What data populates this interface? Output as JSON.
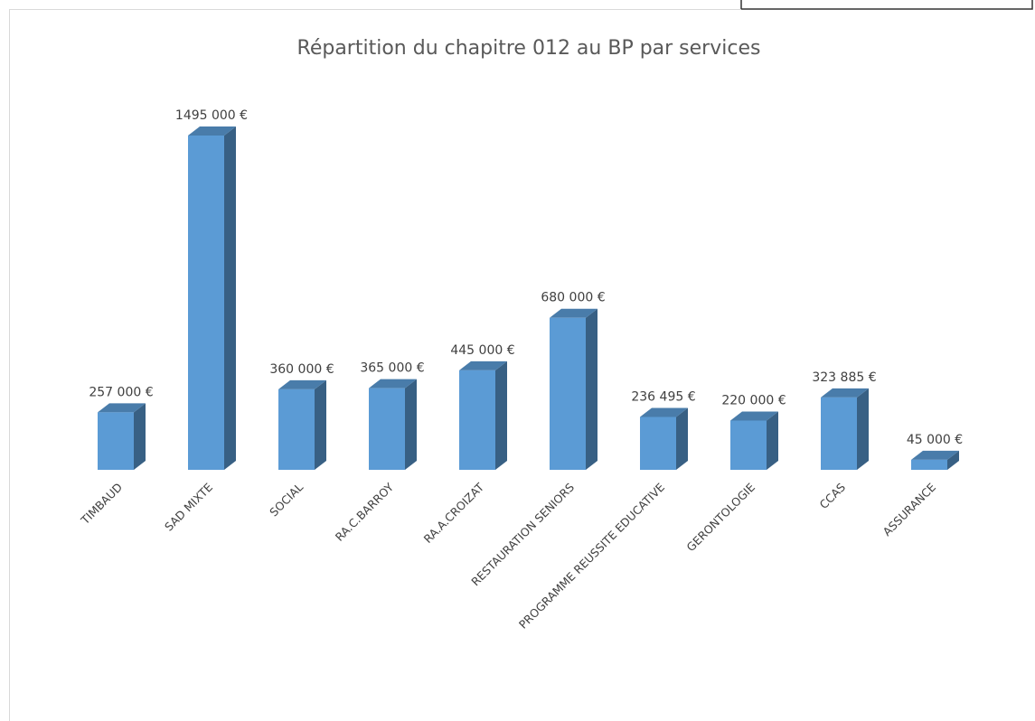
{
  "chart_data": {
    "type": "bar3d",
    "title": "Répartition du chapitre 012 au BP par services",
    "categories": [
      "TIMBAUD",
      "SAD MIXTE",
      "SOCIAL",
      "RA.C.BARROY",
      "RA.A.CROIZAT",
      "RESTAURATION SENIORS",
      "PROGRAMME REUSSITE EDUCATIVE",
      "GERONTOLOGIE",
      "CCAS",
      "ASSURANCE"
    ],
    "values": [
      257000,
      1495000,
      360000,
      365000,
      445000,
      680000,
      236495,
      220000,
      323885,
      45000
    ],
    "value_labels": [
      "257 000 €",
      "1495 000 €",
      "360 000 €",
      "365 000 €",
      "445 000 €",
      "680 000 €",
      "236 495 €",
      "220 000 €",
      "323 885 €",
      "45 000 €"
    ],
    "color": "#5b9bd5"
  }
}
